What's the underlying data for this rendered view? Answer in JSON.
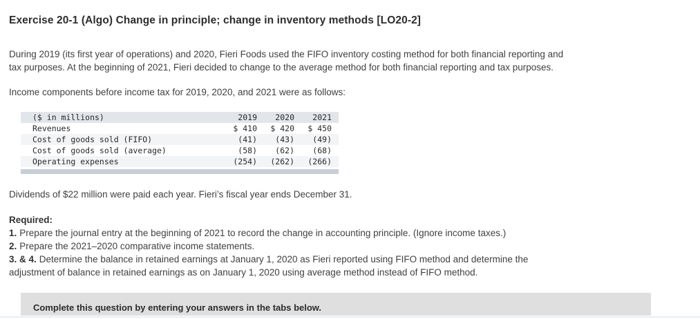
{
  "colors": {
    "table_header_bg": "#e2e5e9",
    "table_stripe_bg": "#f3f4f6",
    "table_bottom_bar": "#c9ced6",
    "banner_bg": "#dfdfdf",
    "bottom_divider": "#e8eef3",
    "body_text": "#404040"
  },
  "page": {
    "title": "Exercise 20-1 (Algo) Change in principle; change in inventory methods [LO20-2]",
    "intro_lines": [
      "During 2019 (its first year of operations) and 2020, Fieri Foods used the FIFO inventory costing method for both financial reporting and",
      "tax purposes. At the beginning of 2021, Fieri decided to change to the average method for both financial reporting and tax purposes."
    ],
    "income_line": "Income components before income tax for 2019, 2020, and 2021 were as follows:",
    "dividends_line": "Dividends of $22 million were paid each year. Fieri’s fiscal year ends December 31.",
    "required_label": "Required:",
    "requirements": [
      {
        "prefix": "1.",
        "lines": [
          "Prepare the journal entry at the beginning of 2021 to record the change in accounting principle. (Ignore income taxes.)"
        ]
      },
      {
        "prefix": "2.",
        "lines": [
          "Prepare the 2021–2020 comparative income statements."
        ]
      },
      {
        "prefix": "3. & 4.",
        "lines": [
          "Determine the balance in retained earnings at January 1, 2020 as Fieri reported using FIFO method and determine the",
          "adjustment of balance in retained earnings as on January 1, 2020 using average method instead of FIFO method."
        ]
      }
    ],
    "banner": "Complete this question by entering your answers in the tabs below."
  },
  "table": {
    "header": {
      "label": "($ in millions)",
      "years": [
        "2019",
        "2020",
        "2021"
      ]
    },
    "rows": [
      {
        "label": "Revenues",
        "values": [
          "$ 410",
          "$ 420",
          "$ 450"
        ]
      },
      {
        "label": "Cost of goods sold (FIFO)",
        "values": [
          "(41)",
          "(43)",
          "(49)"
        ]
      },
      {
        "label": "Cost of goods sold (average)",
        "values": [
          "(58)",
          "(62)",
          "(68)"
        ]
      },
      {
        "label": "Operating expenses",
        "values": [
          "(254)",
          "(262)",
          "(266)"
        ]
      }
    ]
  }
}
